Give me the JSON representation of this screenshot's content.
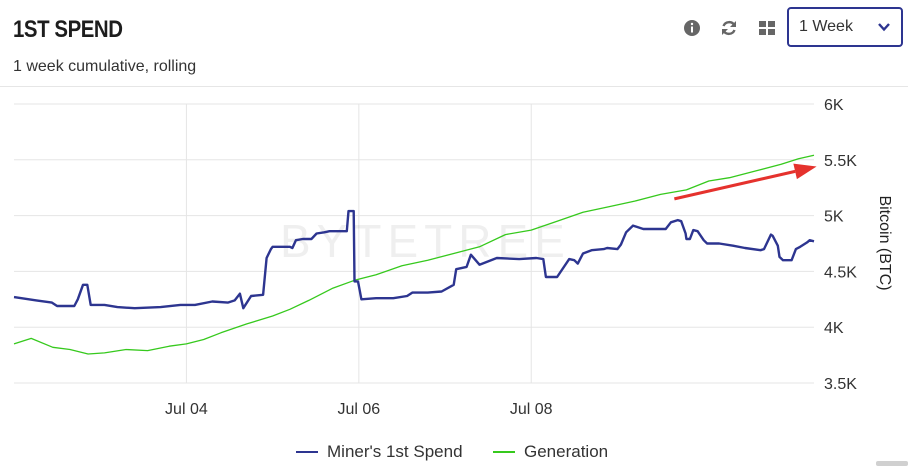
{
  "header": {
    "title": "1ST SPEND",
    "subtitle": "1 week cumulative, rolling",
    "period_selected": "1 Week",
    "icons": [
      "info-icon",
      "refresh-icon",
      "grid-view-icon",
      "chevron-down-icon"
    ]
  },
  "colors": {
    "miner_series": "#2d3590",
    "generation_series": "#36c91d",
    "grid": "#e5e5e5",
    "arrow": "#e5322d",
    "select_border": "#2d3590"
  },
  "watermark": "BYTETREE",
  "chart_data": {
    "type": "line",
    "title": "",
    "xlabel": "",
    "ylabel": "Bitcoin (BTC)",
    "x_range": [
      0,
      8.61
    ],
    "x_ticks": [
      {
        "x": 2,
        "label": "Jul 04"
      },
      {
        "x": 4,
        "label": "Jul 06"
      },
      {
        "x": 6,
        "label": "Jul 08"
      }
    ],
    "ylim": [
      3500,
      6000
    ],
    "y_ticks": [
      {
        "y": 3500,
        "label": "3.5K"
      },
      {
        "y": 4000,
        "label": "4K"
      },
      {
        "y": 4500,
        "label": "4.5K"
      },
      {
        "y": 5000,
        "label": "5K"
      },
      {
        "y": 5500,
        "label": "5.5K"
      },
      {
        "y": 6000,
        "label": "6K"
      }
    ],
    "grid": true,
    "axis_position": "right",
    "legend_position": "bottom-center",
    "series": [
      {
        "name": "Miner's 1st Spend",
        "points": [
          [
            0.0,
            4270
          ],
          [
            0.26,
            4240
          ],
          [
            0.44,
            4220
          ],
          [
            0.5,
            4190
          ],
          [
            0.7,
            4190
          ],
          [
            0.74,
            4250
          ],
          [
            0.8,
            4380
          ],
          [
            0.85,
            4380
          ],
          [
            0.89,
            4200
          ],
          [
            1.05,
            4200
          ],
          [
            1.2,
            4180
          ],
          [
            1.4,
            4170
          ],
          [
            1.7,
            4180
          ],
          [
            1.93,
            4200
          ],
          [
            2.1,
            4200
          ],
          [
            2.3,
            4230
          ],
          [
            2.48,
            4220
          ],
          [
            2.56,
            4240
          ],
          [
            2.62,
            4300
          ],
          [
            2.66,
            4170
          ],
          [
            2.75,
            4280
          ],
          [
            2.89,
            4290
          ],
          [
            2.93,
            4620
          ],
          [
            2.98,
            4700
          ],
          [
            3.0,
            4720
          ],
          [
            3.2,
            4720
          ],
          [
            3.23,
            4710
          ],
          [
            3.27,
            4780
          ],
          [
            3.35,
            4790
          ],
          [
            3.45,
            4790
          ],
          [
            3.51,
            4840
          ],
          [
            3.6,
            4850
          ],
          [
            3.66,
            4860
          ],
          [
            3.86,
            4860
          ],
          [
            3.88,
            5040
          ],
          [
            3.94,
            5040
          ],
          [
            3.95,
            4410
          ],
          [
            3.99,
            4410
          ],
          [
            4.03,
            4250
          ],
          [
            4.2,
            4260
          ],
          [
            4.4,
            4260
          ],
          [
            4.56,
            4280
          ],
          [
            4.62,
            4310
          ],
          [
            4.8,
            4310
          ],
          [
            4.96,
            4320
          ],
          [
            5.1,
            4380
          ],
          [
            5.13,
            4520
          ],
          [
            5.25,
            4540
          ],
          [
            5.3,
            4650
          ],
          [
            5.4,
            4560
          ],
          [
            5.6,
            4620
          ],
          [
            5.86,
            4610
          ],
          [
            6.06,
            4620
          ],
          [
            6.14,
            4610
          ],
          [
            6.17,
            4450
          ],
          [
            6.3,
            4450
          ],
          [
            6.44,
            4610
          ],
          [
            6.5,
            4600
          ],
          [
            6.54,
            4570
          ],
          [
            6.6,
            4660
          ],
          [
            6.7,
            4690
          ],
          [
            6.84,
            4700
          ],
          [
            6.88,
            4710
          ],
          [
            7.0,
            4700
          ],
          [
            7.04,
            4740
          ],
          [
            7.1,
            4850
          ],
          [
            7.18,
            4910
          ],
          [
            7.3,
            4880
          ],
          [
            7.46,
            4880
          ],
          [
            7.56,
            4880
          ],
          [
            7.62,
            4940
          ],
          [
            7.7,
            4960
          ],
          [
            7.74,
            4950
          ],
          [
            7.79,
            4840
          ],
          [
            7.8,
            4790
          ],
          [
            7.84,
            4790
          ],
          [
            7.88,
            4870
          ],
          [
            7.93,
            4860
          ],
          [
            8.0,
            4780
          ],
          [
            8.04,
            4750
          ],
          [
            8.18,
            4750
          ],
          [
            8.34,
            4730
          ],
          [
            8.48,
            4710
          ],
          [
            8.66,
            4690
          ],
          [
            8.7,
            4700
          ],
          [
            8.78,
            4830
          ],
          [
            8.8,
            4820
          ],
          [
            8.86,
            4730
          ],
          [
            8.88,
            4630
          ],
          [
            8.92,
            4600
          ],
          [
            9.02,
            4600
          ],
          [
            9.07,
            4700
          ],
          [
            9.12,
            4720
          ],
          [
            9.2,
            4760
          ],
          [
            9.23,
            4780
          ],
          [
            9.28,
            4770
          ]
        ]
      },
      {
        "name": "Generation",
        "points": [
          [
            0.0,
            3850
          ],
          [
            0.2,
            3900
          ],
          [
            0.45,
            3820
          ],
          [
            0.65,
            3800
          ],
          [
            0.86,
            3760
          ],
          [
            1.05,
            3770
          ],
          [
            1.3,
            3800
          ],
          [
            1.55,
            3790
          ],
          [
            1.8,
            3830
          ],
          [
            2.0,
            3850
          ],
          [
            2.2,
            3890
          ],
          [
            2.4,
            3950
          ],
          [
            2.7,
            4030
          ],
          [
            3.0,
            4100
          ],
          [
            3.2,
            4160
          ],
          [
            3.42,
            4240
          ],
          [
            3.7,
            4350
          ],
          [
            3.95,
            4420
          ],
          [
            4.2,
            4470
          ],
          [
            4.5,
            4550
          ],
          [
            4.8,
            4600
          ],
          [
            5.1,
            4660
          ],
          [
            5.4,
            4720
          ],
          [
            5.7,
            4830
          ],
          [
            6.0,
            4870
          ],
          [
            6.3,
            4950
          ],
          [
            6.6,
            5030
          ],
          [
            6.9,
            5080
          ],
          [
            7.2,
            5130
          ],
          [
            7.5,
            5190
          ],
          [
            7.8,
            5230
          ],
          [
            8.06,
            5310
          ],
          [
            8.3,
            5340
          ],
          [
            8.6,
            5400
          ],
          [
            8.9,
            5460
          ],
          [
            9.1,
            5510
          ],
          [
            9.28,
            5540
          ]
        ]
      }
    ],
    "annotation": {
      "type": "arrow",
      "from": [
        7.66,
        5150
      ],
      "to": [
        9.31,
        5440
      ]
    }
  }
}
